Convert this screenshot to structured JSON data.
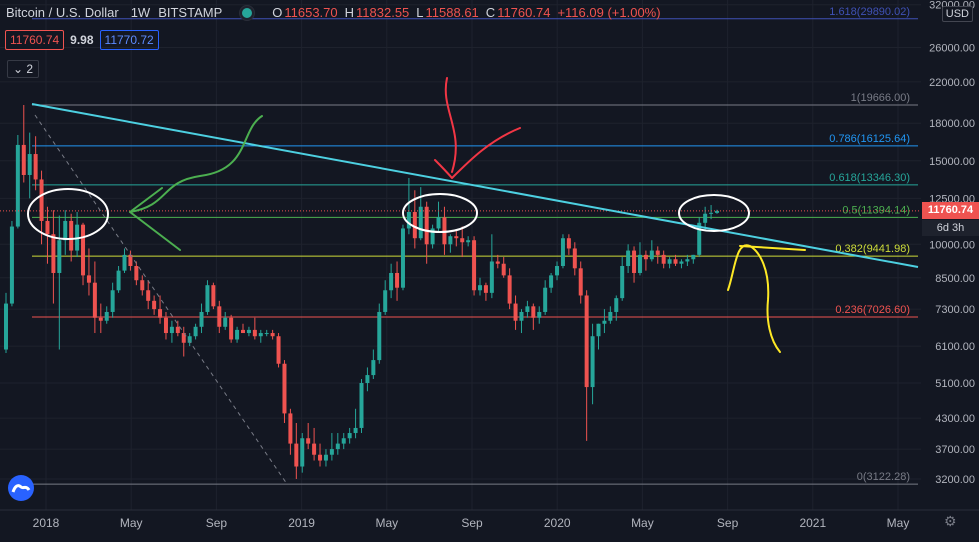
{
  "header": {
    "symbol": "Bitcoin / U.S. Dollar",
    "interval": "1W",
    "exchange": "BITSTAMP",
    "open_label": "O",
    "open": "11653.70",
    "high_label": "H",
    "high": "11832.55",
    "low_label": "L",
    "low": "11588.61",
    "close_label": "C",
    "close": "11760.74",
    "change": "+116.09 (+1.00%)"
  },
  "quote": {
    "sell": "11760.74",
    "spread": "9.98",
    "buy": "11770.72"
  },
  "indicators_button": "2",
  "currency": "USD",
  "last_price_tag": "11760.74",
  "countdown": "6d 3h",
  "colors": {
    "bg": "#131722",
    "up": "#26a69a",
    "down": "#ef5350",
    "trend": "#4dd0e1",
    "grid": "#1e222d"
  },
  "icons": [
    "tradingview-logo-icon",
    "gear-icon"
  ],
  "chart_data": {
    "type": "candlestick",
    "price_axis": {
      "scale": "log",
      "range": [
        3000,
        32000
      ],
      "ticks": [
        "32000.00",
        "26000.00",
        "22000.00",
        "18000.00",
        "15000.00",
        "12500.00",
        "10000.00",
        "8500.00",
        "7300.00",
        "6100.00",
        "5100.00",
        "4300.00",
        "3700.00",
        "3200.00"
      ]
    },
    "time_axis": {
      "labels": [
        "2018",
        "May",
        "Sep",
        "2019",
        "May",
        "Sep",
        "2020",
        "May",
        "Sep",
        "2021",
        "May"
      ]
    },
    "fib_levels": [
      {
        "label": "1.618(29890.02)",
        "value": 29890.02,
        "color": "#3f51b5"
      },
      {
        "label": "1(19666.00)",
        "value": 19666.0,
        "color": "#787b86"
      },
      {
        "label": "0.786(16125.64)",
        "value": 16125.64,
        "color": "#2196f3"
      },
      {
        "label": "0.618(13346.30)",
        "value": 13346.3,
        "color": "#26a69a"
      },
      {
        "label": "0.5(11394.14)",
        "value": 11394.14,
        "color": "#4caf50"
      },
      {
        "label": "0.382(9441.98)",
        "value": 9441.98,
        "color": "#cddc39"
      },
      {
        "label": "0.236(7026.60)",
        "value": 7026.6,
        "color": "#ef5350"
      },
      {
        "label": "0(3122.28)",
        "value": 3122.28,
        "color": "#787b86"
      }
    ],
    "series": [
      {
        "name": "Bitcoin / U.S. Dollar",
        "ohlc": [
          [
            6000,
            7900,
            5900,
            7500
          ],
          [
            7500,
            11200,
            7400,
            10900
          ],
          [
            10900,
            17000,
            10800,
            16200
          ],
          [
            16200,
            19666,
            13500,
            14000
          ],
          [
            14000,
            17200,
            12500,
            15500
          ],
          [
            15500,
            16900,
            13000,
            13700
          ],
          [
            13700,
            14300,
            10000,
            11200
          ],
          [
            11200,
            12000,
            9100,
            10500
          ],
          [
            10500,
            11800,
            7500,
            8700
          ],
          [
            8700,
            11500,
            6000,
            10200
          ],
          [
            10200,
            11800,
            9500,
            11200
          ],
          [
            11200,
            11600,
            9200,
            9700
          ],
          [
            9700,
            11700,
            9400,
            11000
          ],
          [
            11000,
            11100,
            8200,
            8600
          ],
          [
            8600,
            9800,
            7800,
            8300
          ],
          [
            8300,
            9200,
            6500,
            7000
          ],
          [
            7000,
            7500,
            6500,
            6900
          ],
          [
            6900,
            7400,
            6800,
            7200
          ],
          [
            7200,
            8300,
            7000,
            8000
          ],
          [
            8000,
            9000,
            7900,
            8800
          ],
          [
            8800,
            9800,
            8700,
            9500
          ],
          [
            9500,
            9700,
            8800,
            9000
          ],
          [
            9000,
            9200,
            8200,
            8400
          ],
          [
            8400,
            8600,
            7800,
            8000
          ],
          [
            8000,
            8400,
            7300,
            7600
          ],
          [
            7600,
            7800,
            7100,
            7300
          ],
          [
            7300,
            7800,
            6800,
            7000
          ],
          [
            7000,
            7200,
            6300,
            6500
          ],
          [
            6500,
            6900,
            6200,
            6700
          ],
          [
            6700,
            6900,
            6400,
            6500
          ],
          [
            6500,
            6700,
            5800,
            6200
          ],
          [
            6200,
            6500,
            6100,
            6400
          ],
          [
            6400,
            6800,
            6300,
            6700
          ],
          [
            6700,
            7500,
            6500,
            7200
          ],
          [
            7200,
            8400,
            7100,
            8200
          ],
          [
            8200,
            8300,
            7300,
            7400
          ],
          [
            7400,
            7600,
            6500,
            6700
          ],
          [
            6700,
            7200,
            6600,
            7000
          ],
          [
            7000,
            7100,
            6200,
            6300
          ],
          [
            6300,
            6700,
            6200,
            6600
          ],
          [
            6600,
            6800,
            6500,
            6500
          ],
          [
            6500,
            6700,
            6400,
            6600
          ],
          [
            6600,
            7000,
            6300,
            6400
          ],
          [
            6400,
            6600,
            6200,
            6500
          ],
          [
            6500,
            6600,
            6400,
            6500
          ],
          [
            6500,
            6600,
            6300,
            6400
          ],
          [
            6400,
            6500,
            5500,
            5600
          ],
          [
            5600,
            5700,
            4200,
            4400
          ],
          [
            4400,
            4500,
            3600,
            3800
          ],
          [
            3800,
            4200,
            3200,
            3400
          ],
          [
            3400,
            4000,
            3300,
            3900
          ],
          [
            3900,
            4200,
            3700,
            3800
          ],
          [
            3800,
            4100,
            3500,
            3600
          ],
          [
            3600,
            3800,
            3400,
            3500
          ],
          [
            3500,
            3700,
            3400,
            3600
          ],
          [
            3600,
            4000,
            3500,
            3700
          ],
          [
            3700,
            4000,
            3600,
            3800
          ],
          [
            3800,
            4000,
            3700,
            3900
          ],
          [
            3900,
            4100,
            3800,
            4000
          ],
          [
            4000,
            4500,
            3900,
            4100
          ],
          [
            4100,
            5200,
            4000,
            5100
          ],
          [
            5100,
            5500,
            4900,
            5300
          ],
          [
            5300,
            6000,
            5200,
            5700
          ],
          [
            5700,
            7500,
            5600,
            7200
          ],
          [
            7200,
            8400,
            7100,
            8000
          ],
          [
            8000,
            9100,
            7700,
            8700
          ],
          [
            8700,
            9200,
            7600,
            8100
          ],
          [
            8100,
            11000,
            8000,
            10800
          ],
          [
            10800,
            13800,
            10500,
            11700
          ],
          [
            11700,
            13000,
            9800,
            10300
          ],
          [
            10300,
            13200,
            10200,
            12000
          ],
          [
            12000,
            12300,
            9100,
            10000
          ],
          [
            10000,
            11000,
            9800,
            10800
          ],
          [
            10800,
            12300,
            10600,
            11400
          ],
          [
            11400,
            12000,
            9500,
            10000
          ],
          [
            10000,
            10500,
            9600,
            10400
          ],
          [
            10400,
            10700,
            9900,
            10300
          ],
          [
            10300,
            10900,
            9400,
            10100
          ],
          [
            10100,
            10400,
            9900,
            10200
          ],
          [
            10200,
            10400,
            7800,
            8000
          ],
          [
            8000,
            8500,
            7800,
            8200
          ],
          [
            8200,
            8300,
            7600,
            7900
          ],
          [
            7900,
            10500,
            7700,
            9200
          ],
          [
            9200,
            9500,
            8900,
            9100
          ],
          [
            9100,
            9400,
            8500,
            8600
          ],
          [
            8600,
            8900,
            7300,
            7500
          ],
          [
            7500,
            7800,
            6600,
            6900
          ],
          [
            6900,
            7300,
            6500,
            7200
          ],
          [
            7200,
            7600,
            7000,
            7400
          ],
          [
            7400,
            7500,
            6600,
            7000
          ],
          [
            7000,
            7400,
            6800,
            7200
          ],
          [
            7200,
            8400,
            7100,
            8100
          ],
          [
            8100,
            8700,
            7900,
            8600
          ],
          [
            8600,
            9200,
            8400,
            9000
          ],
          [
            9000,
            10500,
            8900,
            10300
          ],
          [
            10300,
            10500,
            9500,
            9800
          ],
          [
            9800,
            10100,
            8600,
            8900
          ],
          [
            8900,
            9200,
            7500,
            7800
          ],
          [
            7800,
            8000,
            3850,
            5000
          ],
          [
            5000,
            6800,
            4600,
            6400
          ],
          [
            6400,
            6800,
            6000,
            6800
          ],
          [
            6800,
            7300,
            6500,
            6900
          ],
          [
            6900,
            7400,
            6800,
            7200
          ],
          [
            7200,
            7800,
            6900,
            7700
          ],
          [
            7700,
            9400,
            7600,
            9000
          ],
          [
            9000,
            10000,
            8700,
            9700
          ],
          [
            9700,
            9900,
            8300,
            8700
          ],
          [
            8700,
            10100,
            8600,
            9500
          ],
          [
            9500,
            9700,
            8800,
            9300
          ],
          [
            9300,
            10200,
            9200,
            9700
          ],
          [
            9700,
            9900,
            9100,
            9500
          ],
          [
            9500,
            9700,
            8900,
            9100
          ],
          [
            9100,
            9400,
            8900,
            9300
          ],
          [
            9300,
            9500,
            9000,
            9100
          ],
          [
            9100,
            9300,
            8900,
            9200
          ],
          [
            9200,
            9500,
            9000,
            9300
          ],
          [
            9300,
            9500,
            9100,
            9500
          ],
          [
            9500,
            11400,
            9400,
            11100
          ],
          [
            11100,
            12000,
            10700,
            11600
          ],
          [
            11600,
            12100,
            11300,
            11650
          ],
          [
            11650,
            11830,
            11590,
            11760
          ]
        ]
      }
    ],
    "trendline": {
      "from": [
        19666,
        "2017-12-17"
      ],
      "to": [
        9000,
        "2021-05"
      ]
    },
    "sketch_marks": [
      "ellipse",
      "ellipse",
      "ellipse",
      "ellipse",
      "arrow",
      "arrow",
      "curve"
    ]
  }
}
